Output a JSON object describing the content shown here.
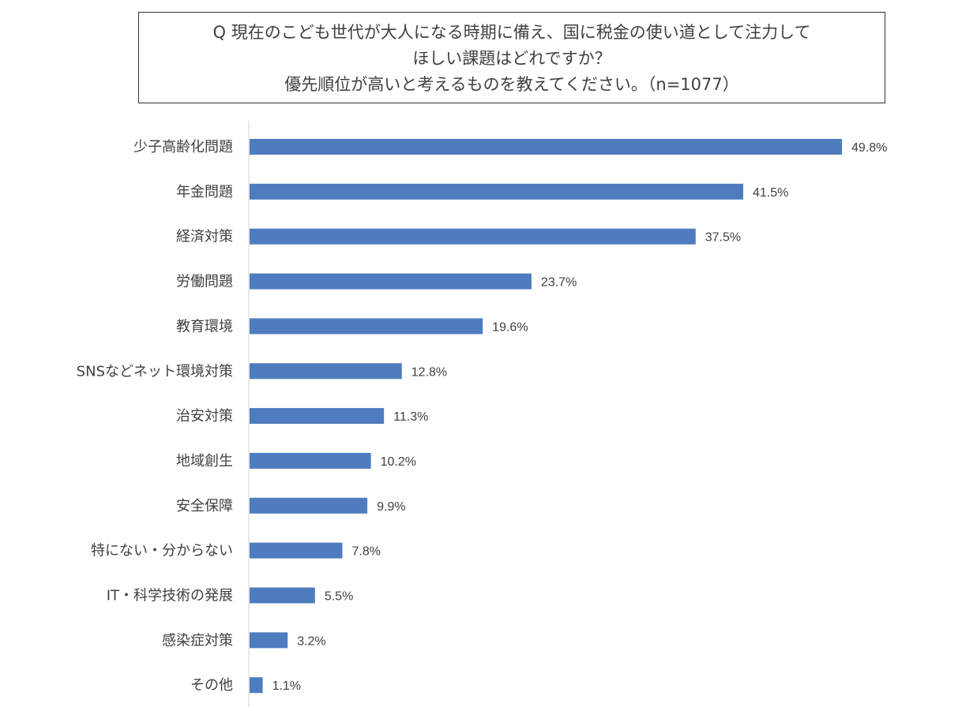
{
  "question": {
    "lines": [
      "Q 現在のこども世代が大人になる時期に備え、国に税金の使い道として注力して",
      "ほしい課題はどれですか？",
      "優先順位が高いと考えるものを教えてください。（n=1077）"
    ]
  },
  "colors": {
    "bar": "#4f7cbf",
    "axis": "#d9d9d9",
    "text": "#404040"
  },
  "chart_data": {
    "type": "bar",
    "orientation": "horizontal",
    "title": "Q 現在のこども世代が大人になる時期に備え、国に税金の使い道として注力してほしい課題はどれですか？優先順位が高いと考えるものを教えてください。（n=1077）",
    "xlabel": "",
    "ylabel": "",
    "unit": "%",
    "xlim": [
      0,
      50.5
    ],
    "grid": false,
    "categories": [
      "少子高齢化問題",
      "年金問題",
      "経済対策",
      "労働問題",
      "教育環境",
      "SNSなどネット環境対策",
      "治安対策",
      "地域創生",
      "安全保障",
      "特にない・分からない",
      "IT・科学技術の発展",
      "感染症対策",
      "その他"
    ],
    "values": [
      49.8,
      41.5,
      37.5,
      23.7,
      19.6,
      12.8,
      11.3,
      10.2,
      9.9,
      7.8,
      5.5,
      3.2,
      1.1
    ],
    "value_labels": [
      "49.8%",
      "41.5%",
      "37.5%",
      "23.7%",
      "19.6%",
      "12.8%",
      "11.3%",
      "10.2%",
      "9.9%",
      "7.8%",
      "5.5%",
      "3.2%",
      "1.1%"
    ]
  }
}
